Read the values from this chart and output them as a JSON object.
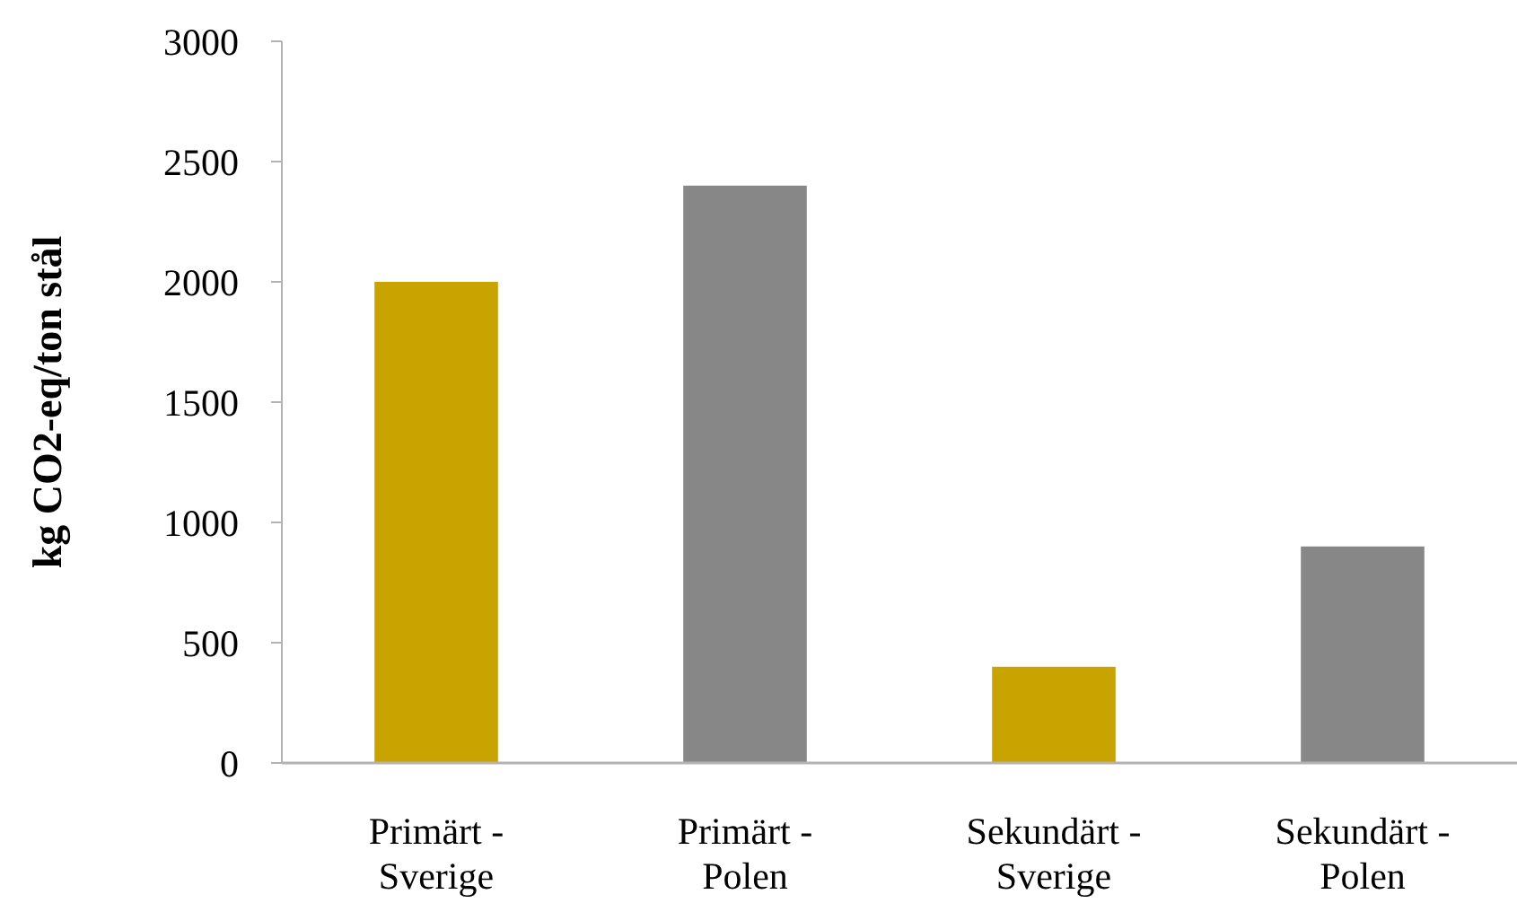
{
  "chart_data": {
    "type": "bar",
    "ylabel": "kg CO2-eq/ton stål",
    "categories": [
      "Primärt - Sverige",
      "Primärt - Polen",
      "Sekundärt - Sverige",
      "Sekundärt - Polen"
    ],
    "values": [
      2000,
      2400,
      400,
      900
    ],
    "colors": [
      "#c9a400",
      "#878787",
      "#c9a400",
      "#878787"
    ],
    "ylim": [
      0,
      3000
    ],
    "yticks": [
      0,
      500,
      1000,
      1500,
      2000,
      2500,
      3000
    ]
  }
}
